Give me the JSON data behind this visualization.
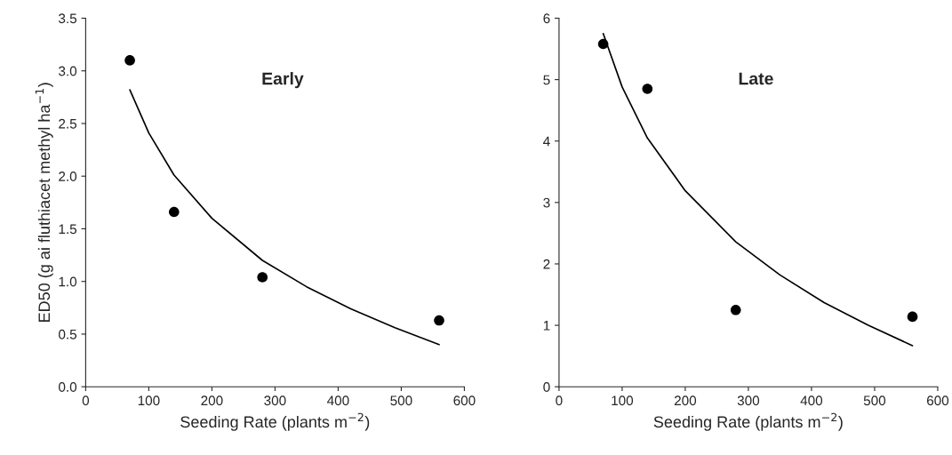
{
  "chart_data": [
    {
      "type": "scatter",
      "xlabel": "Seeding Rate (plants m$^{−2}$)",
      "ylabel": "ED50 (g ai fluthiacet methyl ha$^{−1}$)",
      "annotations": [
        "Early"
      ],
      "marker": "circle",
      "grid": false,
      "legend": false,
      "xlim": [
        0,
        600
      ],
      "xticks": [
        0,
        100,
        200,
        300,
        400,
        500,
        600
      ],
      "ylim": [
        0,
        3.5
      ],
      "yticks": [
        {
          "value": 0,
          "label": "0.0"
        },
        0.5,
        {
          "value": 1,
          "label": "1.0"
        },
        1.5,
        {
          "value": 2,
          "label": "2.0"
        },
        2.5,
        {
          "value": 3,
          "label": "3.0"
        },
        3.5
      ],
      "series": [
        {
          "color": "#000000",
          "x": [
            70,
            140,
            280,
            560
          ],
          "values": [
            3.1,
            1.66,
            1.04,
            0.63
          ]
        },
        {
          "type": "line",
          "color": "#000000",
          "marker": "none",
          "line_style": "solid",
          "x": [
            70,
            100,
            140,
            200,
            280,
            350,
            420,
            490,
            560
          ],
          "values": [
            2.82,
            2.41,
            2.01,
            1.6,
            1.2,
            0.95,
            0.74,
            0.56,
            0.4
          ]
        }
      ]
    },
    {
      "type": "scatter",
      "xlabel": "Seeding Rate (plants m$^{−2}$)",
      "annotations": [
        "Late"
      ],
      "marker": "circle",
      "grid": false,
      "legend": false,
      "xlim": [
        0,
        600
      ],
      "xticks": [
        0,
        100,
        200,
        300,
        400,
        500,
        600
      ],
      "ylim": [
        0,
        6
      ],
      "yticks": [
        0,
        1,
        2,
        3,
        4,
        5,
        6
      ],
      "series": [
        {
          "color": "#000000",
          "x": [
            70,
            140,
            280,
            560
          ],
          "values": [
            5.58,
            4.85,
            1.25,
            1.14
          ]
        },
        {
          "type": "line",
          "color": "#000000",
          "marker": "none",
          "line_style": "solid",
          "x": [
            70,
            100,
            140,
            200,
            280,
            350,
            420,
            490,
            560
          ],
          "values": [
            5.75,
            4.88,
            4.05,
            3.19,
            2.36,
            1.82,
            1.37,
            1.0,
            0.67
          ]
        }
      ]
    }
  ]
}
